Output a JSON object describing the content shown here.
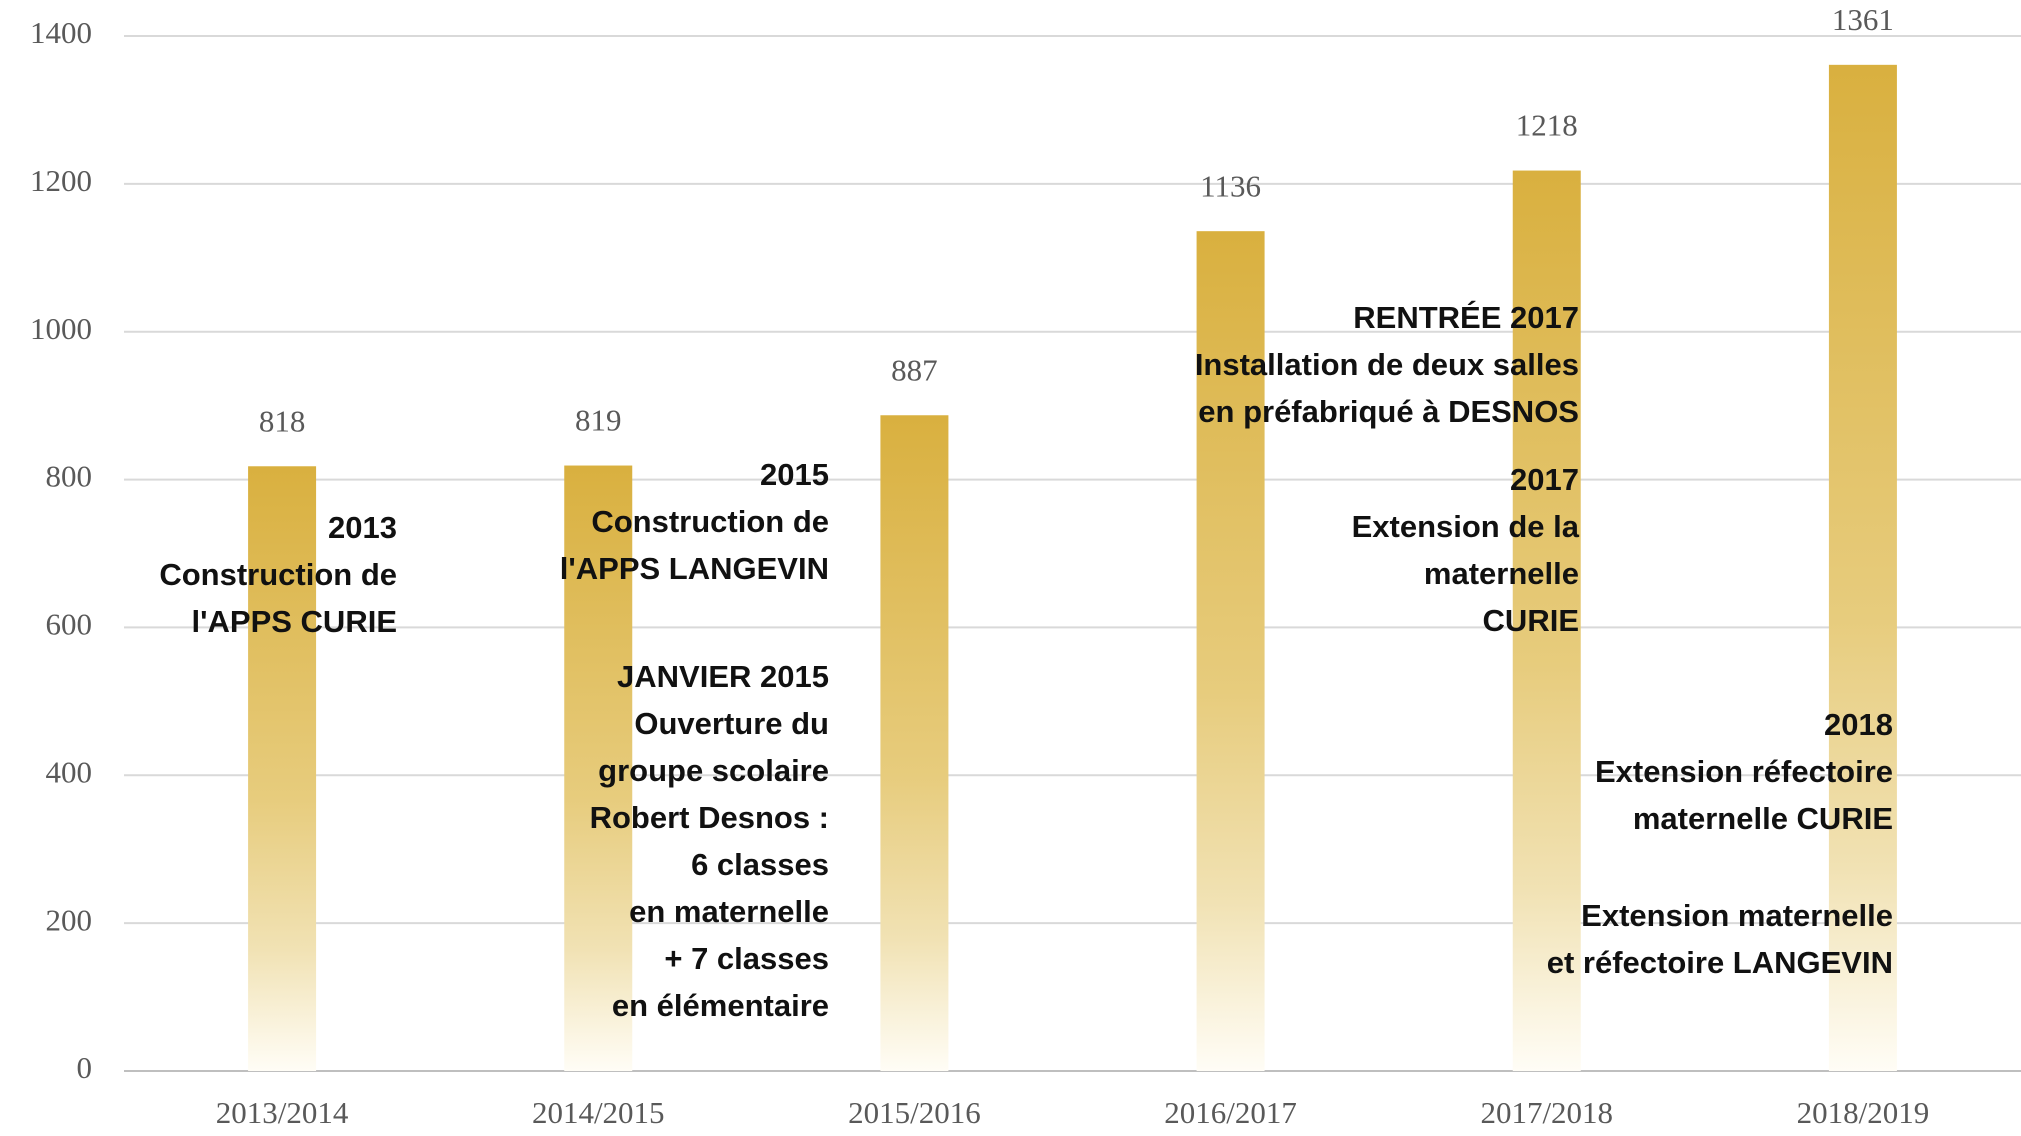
{
  "chart_data": {
    "type": "bar",
    "categories": [
      "2013/2014",
      "2014/2015",
      "2015/2016",
      "2016/2017",
      "2017/2018",
      "2018/2019"
    ],
    "values": [
      818,
      819,
      887,
      1136,
      1218,
      1361
    ],
    "color": "#dab347",
    "ylim": [
      0,
      1400
    ],
    "yticks": [
      0,
      200,
      400,
      600,
      800,
      1000,
      1200,
      1400
    ],
    "grid": true,
    "annotations": [
      [
        "2013",
        "Construction de",
        "l'APPS CURIE"
      ],
      [
        "2015",
        "Construction de",
        "l'APPS LANGEVIN"
      ],
      [
        "JANVIER 2015",
        "Ouverture du",
        "groupe scolaire",
        "Robert Desnos :",
        "6 classes",
        "en maternelle",
        "+ 7 classes",
        "en élémentaire"
      ],
      [
        "RENTRÉE 2017",
        "Installation de deux salles",
        "en préfabriqué à DESNOS"
      ],
      [
        "2017",
        "Extension de la",
        "maternelle",
        "CURIE"
      ],
      [
        "2018",
        "Extension réfectoire",
        "maternelle CURIE"
      ],
      [
        "Extension maternelle",
        "et réfectoire LANGEVIN"
      ]
    ]
  }
}
